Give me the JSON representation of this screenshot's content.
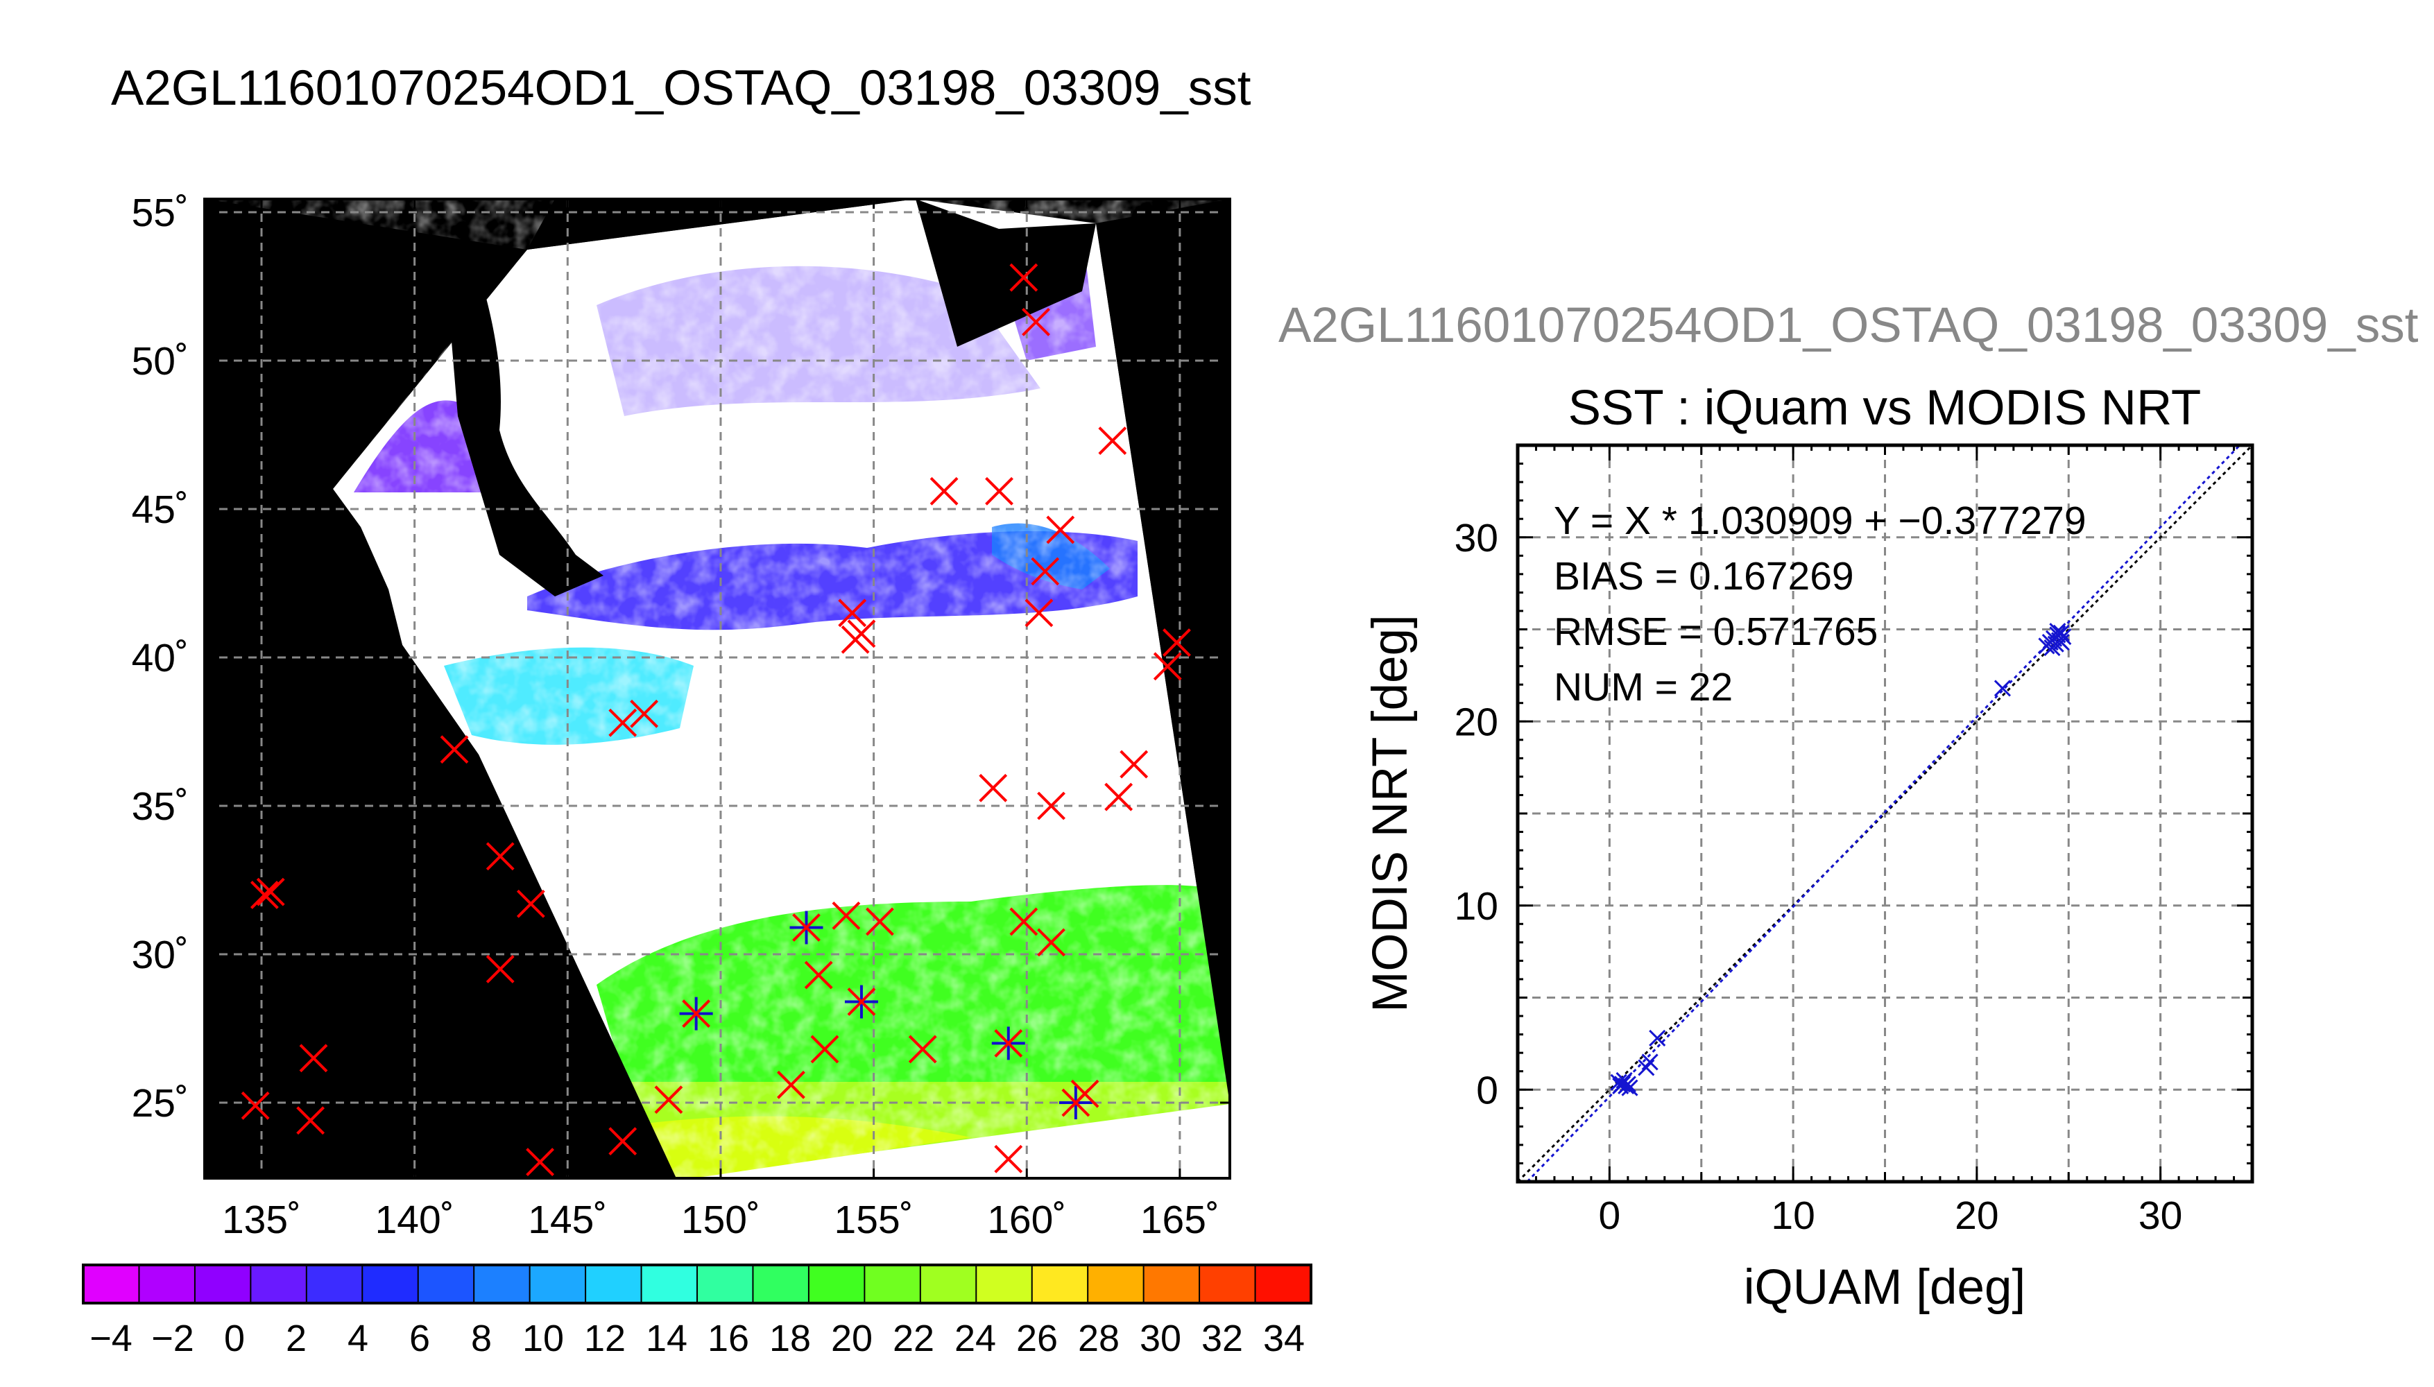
{
  "page_title": "A2GL11601070254OD1_OSTAQ_03198_03309_sst",
  "right_panel_title": "A2GL11601070254OD1_OSTAQ_03198_03309_sst",
  "map": {
    "lon_ticks": [
      "135˚",
      "140˚",
      "145˚",
      "150˚",
      "155˚",
      "160˚",
      "165˚"
    ],
    "lat_ticks": [
      "55˚",
      "50˚",
      "45˚",
      "40˚",
      "35˚",
      "30˚",
      "25˚"
    ],
    "colorbar_labels": [
      "−4",
      "−2",
      "0",
      "2",
      "4",
      "6",
      "8",
      "10",
      "12",
      "14",
      "16",
      "18",
      "20",
      "22",
      "24",
      "26",
      "28",
      "30",
      "32",
      "34"
    ],
    "colorbar_colors": [
      "#e000ff",
      "#b000ff",
      "#9000ff",
      "#6a1aff",
      "#3c2cff",
      "#1f2cff",
      "#1c55ff",
      "#1c80ff",
      "#1ca8ff",
      "#20d0ff",
      "#30ffe0",
      "#30ffa0",
      "#30ff60",
      "#40ff20",
      "#70ff20",
      "#a0ff20",
      "#d0ff20",
      "#ffe820",
      "#ffb000",
      "#ff7800",
      "#ff4000",
      "#ff1000"
    ],
    "colors": {
      "land": "#000000",
      "cloud": "#ffffff",
      "cold_north": "#3520ff",
      "cyan_band": "#30e8ff",
      "green_band": "#40ff20",
      "yellow_band": "#d8ff10",
      "marker": "#ff0000",
      "marker_buoy": "#1010cc"
    },
    "markers": [
      {
        "lon": 134.8,
        "lat": 24.9
      },
      {
        "lon": 135.1,
        "lat": 32.0
      },
      {
        "lon": 135.3,
        "lat": 32.1
      },
      {
        "lon": 136.7,
        "lat": 26.5
      },
      {
        "lon": 136.6,
        "lat": 24.4
      },
      {
        "lon": 141.3,
        "lat": 36.9
      },
      {
        "lon": 142.8,
        "lat": 33.3
      },
      {
        "lon": 142.8,
        "lat": 29.5
      },
      {
        "lon": 143.8,
        "lat": 31.7
      },
      {
        "lon": 144.1,
        "lat": 23.0
      },
      {
        "lon": 146.8,
        "lat": 23.7
      },
      {
        "lon": 146.8,
        "lat": 37.8
      },
      {
        "lon": 147.5,
        "lat": 38.1
      },
      {
        "lon": 148.3,
        "lat": 25.1
      },
      {
        "lon": 149.2,
        "lat": 28.0
      },
      {
        "lon": 152.3,
        "lat": 25.6
      },
      {
        "lon": 152.8,
        "lat": 30.9
      },
      {
        "lon": 153.2,
        "lat": 29.3
      },
      {
        "lon": 153.4,
        "lat": 26.8
      },
      {
        "lon": 154.1,
        "lat": 31.3
      },
      {
        "lon": 154.6,
        "lat": 28.4
      },
      {
        "lon": 155.2,
        "lat": 31.1
      },
      {
        "lon": 154.3,
        "lat": 41.5
      },
      {
        "lon": 154.6,
        "lat": 40.8
      },
      {
        "lon": 154.4,
        "lat": 40.6
      },
      {
        "lon": 156.6,
        "lat": 26.8
      },
      {
        "lon": 157.3,
        "lat": 45.6
      },
      {
        "lon": 158.9,
        "lat": 35.6
      },
      {
        "lon": 159.1,
        "lat": 45.6
      },
      {
        "lon": 159.4,
        "lat": 23.1
      },
      {
        "lon": 159.4,
        "lat": 27.0
      },
      {
        "lon": 159.9,
        "lat": 31.1
      },
      {
        "lon": 159.9,
        "lat": 52.8
      },
      {
        "lon": 160.3,
        "lat": 51.3
      },
      {
        "lon": 160.4,
        "lat": 41.5
      },
      {
        "lon": 160.6,
        "lat": 42.9
      },
      {
        "lon": 160.8,
        "lat": 35.0
      },
      {
        "lon": 160.8,
        "lat": 30.4
      },
      {
        "lon": 161.1,
        "lat": 44.3
      },
      {
        "lon": 161.6,
        "lat": 25.0
      },
      {
        "lon": 161.9,
        "lat": 25.3
      },
      {
        "lon": 162.8,
        "lat": 47.3
      },
      {
        "lon": 163.0,
        "lat": 35.3
      },
      {
        "lon": 163.5,
        "lat": 36.4
      },
      {
        "lon": 164.6,
        "lat": 39.7
      },
      {
        "lon": 164.9,
        "lat": 40.5
      }
    ],
    "buoy_markers": [
      {
        "lon": 149.2,
        "lat": 28.0
      },
      {
        "lon": 152.8,
        "lat": 30.9
      },
      {
        "lon": 154.6,
        "lat": 28.4
      },
      {
        "lon": 159.4,
        "lat": 27.0
      },
      {
        "lon": 161.6,
        "lat": 25.0
      }
    ]
  },
  "chart_data": {
    "type": "scatter",
    "title": "SST : iQuam vs MODIS NRT",
    "xlabel": "iQUAM [deg]",
    "ylabel": "MODIS NRT [deg]",
    "xlim": [
      -5,
      35
    ],
    "ylim": [
      -5,
      35
    ],
    "x_ticks": [
      0,
      10,
      20,
      30
    ],
    "y_ticks": [
      0,
      10,
      20,
      30
    ],
    "grid": true,
    "stats": {
      "fit": "Y = X * 1.030909 + −0.377279",
      "bias": "BIAS = 0.167269",
      "rmse": "RMSE = 0.571765",
      "num": "NUM = 22"
    },
    "fit_line": {
      "slope": 1.030909,
      "intercept": -0.377279
    },
    "identity_line": true,
    "points": [
      {
        "x": 0.5,
        "y": 0.4
      },
      {
        "x": 0.6,
        "y": 0.2
      },
      {
        "x": 0.7,
        "y": 0.3
      },
      {
        "x": 0.8,
        "y": 0.5
      },
      {
        "x": 0.9,
        "y": 0.2
      },
      {
        "x": 1.0,
        "y": 0.3
      },
      {
        "x": 1.1,
        "y": 0.1
      },
      {
        "x": 2.0,
        "y": 1.2
      },
      {
        "x": 2.2,
        "y": 1.5
      },
      {
        "x": 2.6,
        "y": 2.8
      },
      {
        "x": 21.4,
        "y": 21.8
      },
      {
        "x": 23.8,
        "y": 24.1
      },
      {
        "x": 24.0,
        "y": 24.3
      },
      {
        "x": 24.1,
        "y": 24.0
      },
      {
        "x": 24.2,
        "y": 24.5
      },
      {
        "x": 24.3,
        "y": 24.2
      },
      {
        "x": 24.4,
        "y": 24.7
      },
      {
        "x": 24.5,
        "y": 24.4
      },
      {
        "x": 24.6,
        "y": 24.8
      },
      {
        "x": 24.7,
        "y": 24.6
      },
      {
        "x": 24.4,
        "y": 24.9
      },
      {
        "x": 24.6,
        "y": 24.3
      }
    ],
    "colors": {
      "points": "#1515d0",
      "fit_line": "#1515d0",
      "identity_line": "#000000",
      "grid": "#777777"
    }
  }
}
